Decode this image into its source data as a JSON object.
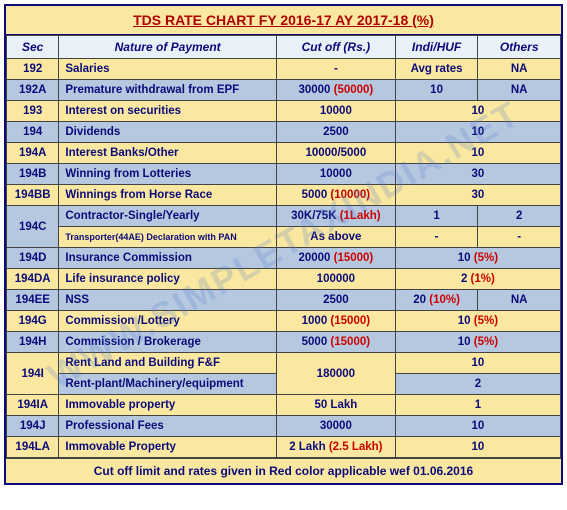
{
  "title": "TDS RATE CHART FY 2016-17 AY 2017-18 (%)",
  "watermark": "WWW.SIMPLETAXINDIA.NET",
  "headers": {
    "sec": "Sec",
    "nature": "Nature of Payment",
    "cutoff": "Cut off (Rs.)",
    "indi": "Indi/HUF",
    "others": "Others"
  },
  "rows": [
    {
      "cls": "",
      "sec": "192",
      "nat": "Salaries",
      "cut": "-",
      "ind": "Avg rates",
      "oth": "NA",
      "span": false
    },
    {
      "cls": "blue",
      "sec": "192A",
      "nat": "Premature withdrawal from EPF",
      "cut": "30000 ",
      "cut_red": "(50000)",
      "ind": "10",
      "oth": "NA",
      "span": false
    },
    {
      "cls": "",
      "sec": "193",
      "nat": "Interest on securities",
      "cut": "10000",
      "merged": "10",
      "span": true
    },
    {
      "cls": "blue",
      "sec": "194",
      "nat": "Dividends",
      "cut": "2500",
      "merged": "10",
      "span": true
    },
    {
      "cls": "",
      "sec": "194A",
      "nat": "Interest Banks/Other",
      "cut": "10000/5000",
      "merged": "10",
      "span": true
    },
    {
      "cls": "blue",
      "sec": "194B",
      "nat": "Winning from Lotteries",
      "cut": "10000",
      "merged": "30",
      "span": true
    },
    {
      "cls": "",
      "sec": "194BB",
      "nat": "Winnings from Horse Race",
      "cut": "5000 ",
      "cut_red": "(10000)",
      "merged": "30",
      "span": true
    },
    {
      "cls": "blue",
      "sec": "194C",
      "rowspan": 2,
      "nat": "Contractor-Single/Yearly",
      "cut": "30K/75K ",
      "cut_red": "(1Lakh)",
      "ind": "1",
      "oth": "2",
      "span": false
    },
    {
      "cls": "",
      "sec": "",
      "nat": "Transporter(44AE) Declaration with PAN",
      "small": true,
      "cut": "As above",
      "ind": "-",
      "oth": "-",
      "span": false,
      "skip_sec": true
    },
    {
      "cls": "blue",
      "sec": "194D",
      "nat": "Insurance Commission",
      "cut": "20000 ",
      "cut_red": "(15000)",
      "merged": "10 ",
      "merged_red": "(5%)",
      "span": true
    },
    {
      "cls": "",
      "sec": "194DA",
      "nat": "Life insurance policy",
      "cut": "100000",
      "merged": "2 ",
      "merged_red": "(1%)",
      "span": true
    },
    {
      "cls": "blue",
      "sec": "194EE",
      "nat": "NSS",
      "cut": "2500",
      "ind": "20 ",
      "ind_red": "(10%)",
      "oth": "NA",
      "span": false
    },
    {
      "cls": "",
      "sec": "194G",
      "nat": "Commission /Lottery",
      "cut": "1000 ",
      "cut_red": "(15000)",
      "merged": "10 ",
      "merged_red": "(5%)",
      "span": true
    },
    {
      "cls": "blue",
      "sec": "194H",
      "nat": "Commission / Brokerage",
      "cut": "5000 ",
      "cut_red": "(15000)",
      "merged": "10 ",
      "merged_red": "(5%)",
      "span": true
    },
    {
      "cls": "",
      "sec": "194I",
      "rowspan": 2,
      "nat": "Rent Land  and  Building  F&F",
      "cut": "180000",
      "cut_rowspan": 2,
      "merged": "10",
      "span": true
    },
    {
      "cls": "blue",
      "sec": "",
      "nat": "Rent-plant/Machinery/equipment",
      "merged": "2",
      "span": true,
      "skip_sec": true,
      "skip_cut": true
    },
    {
      "cls": "",
      "sec": "194IA",
      "nat": "Immovable property",
      "cut": "50 Lakh",
      "merged": "1",
      "span": true
    },
    {
      "cls": "blue",
      "sec": "194J",
      "nat": "Professional Fees",
      "cut": "30000",
      "merged": "10",
      "span": true
    },
    {
      "cls": "",
      "sec": "194LA",
      "nat": "Immovable Property",
      "cut": "2 Lakh ",
      "cut_red": "(2.5 Lakh)",
      "merged": "10",
      "span": true
    }
  ],
  "footnote": "Cut off limit and rates given in Red color applicable wef 01.06.2016",
  "colors": {
    "headerBg": "#e8f0f8",
    "yellowBg": "#fae8a0",
    "blueBg": "#b6c8e0",
    "textNavy": "#0a0a7a",
    "textRed": "#cc0000",
    "border": "#444"
  }
}
